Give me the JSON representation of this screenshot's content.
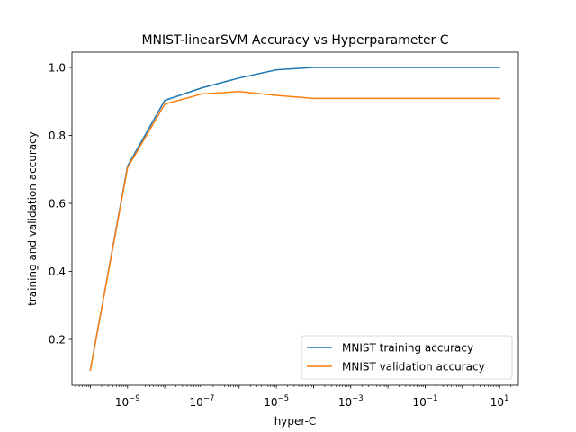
{
  "chart_data": {
    "type": "line",
    "title": "MNIST-linearSVM Accuracy vs Hyperparameter C",
    "xlabel": "hyper-C",
    "ylabel": "training and validation accuracy",
    "x_scale": "log",
    "x": [
      1e-10,
      1e-09,
      1e-08,
      1e-07,
      1e-06,
      1e-05,
      0.0001,
      0.001,
      0.01,
      0.1,
      1,
      10
    ],
    "xlim": [
      3.2e-11,
      32
    ],
    "ylim": [
      0.065,
      1.045
    ],
    "x_ticks": [
      {
        "value": 1e-09,
        "base": "10",
        "exp": "−9"
      },
      {
        "value": 1e-07,
        "base": "10",
        "exp": "−7"
      },
      {
        "value": 1e-05,
        "base": "10",
        "exp": "−5"
      },
      {
        "value": 0.001,
        "base": "10",
        "exp": "−3"
      },
      {
        "value": 0.1,
        "base": "10",
        "exp": "−1"
      },
      {
        "value": 10,
        "base": "10",
        "exp": "1"
      }
    ],
    "y_ticks": [
      {
        "value": 0.2,
        "label": "0.2"
      },
      {
        "value": 0.4,
        "label": "0.4"
      },
      {
        "value": 0.6,
        "label": "0.6"
      },
      {
        "value": 0.8,
        "label": "0.8"
      },
      {
        "value": 1.0,
        "label": "1.0"
      }
    ],
    "grid": false,
    "legend_position": "bottom-right",
    "series": [
      {
        "name": "MNIST training accuracy",
        "color": "#1f77b4",
        "values": [
          0.11,
          0.71,
          0.903,
          0.94,
          0.969,
          0.993,
          1.0,
          1.0,
          1.0,
          1.0,
          1.0,
          1.0
        ]
      },
      {
        "name": "MNIST validation accuracy",
        "color": "#ff7f0e",
        "values": [
          0.11,
          0.705,
          0.892,
          0.922,
          0.929,
          0.918,
          0.909,
          0.909,
          0.909,
          0.909,
          0.909,
          0.909
        ]
      }
    ]
  }
}
